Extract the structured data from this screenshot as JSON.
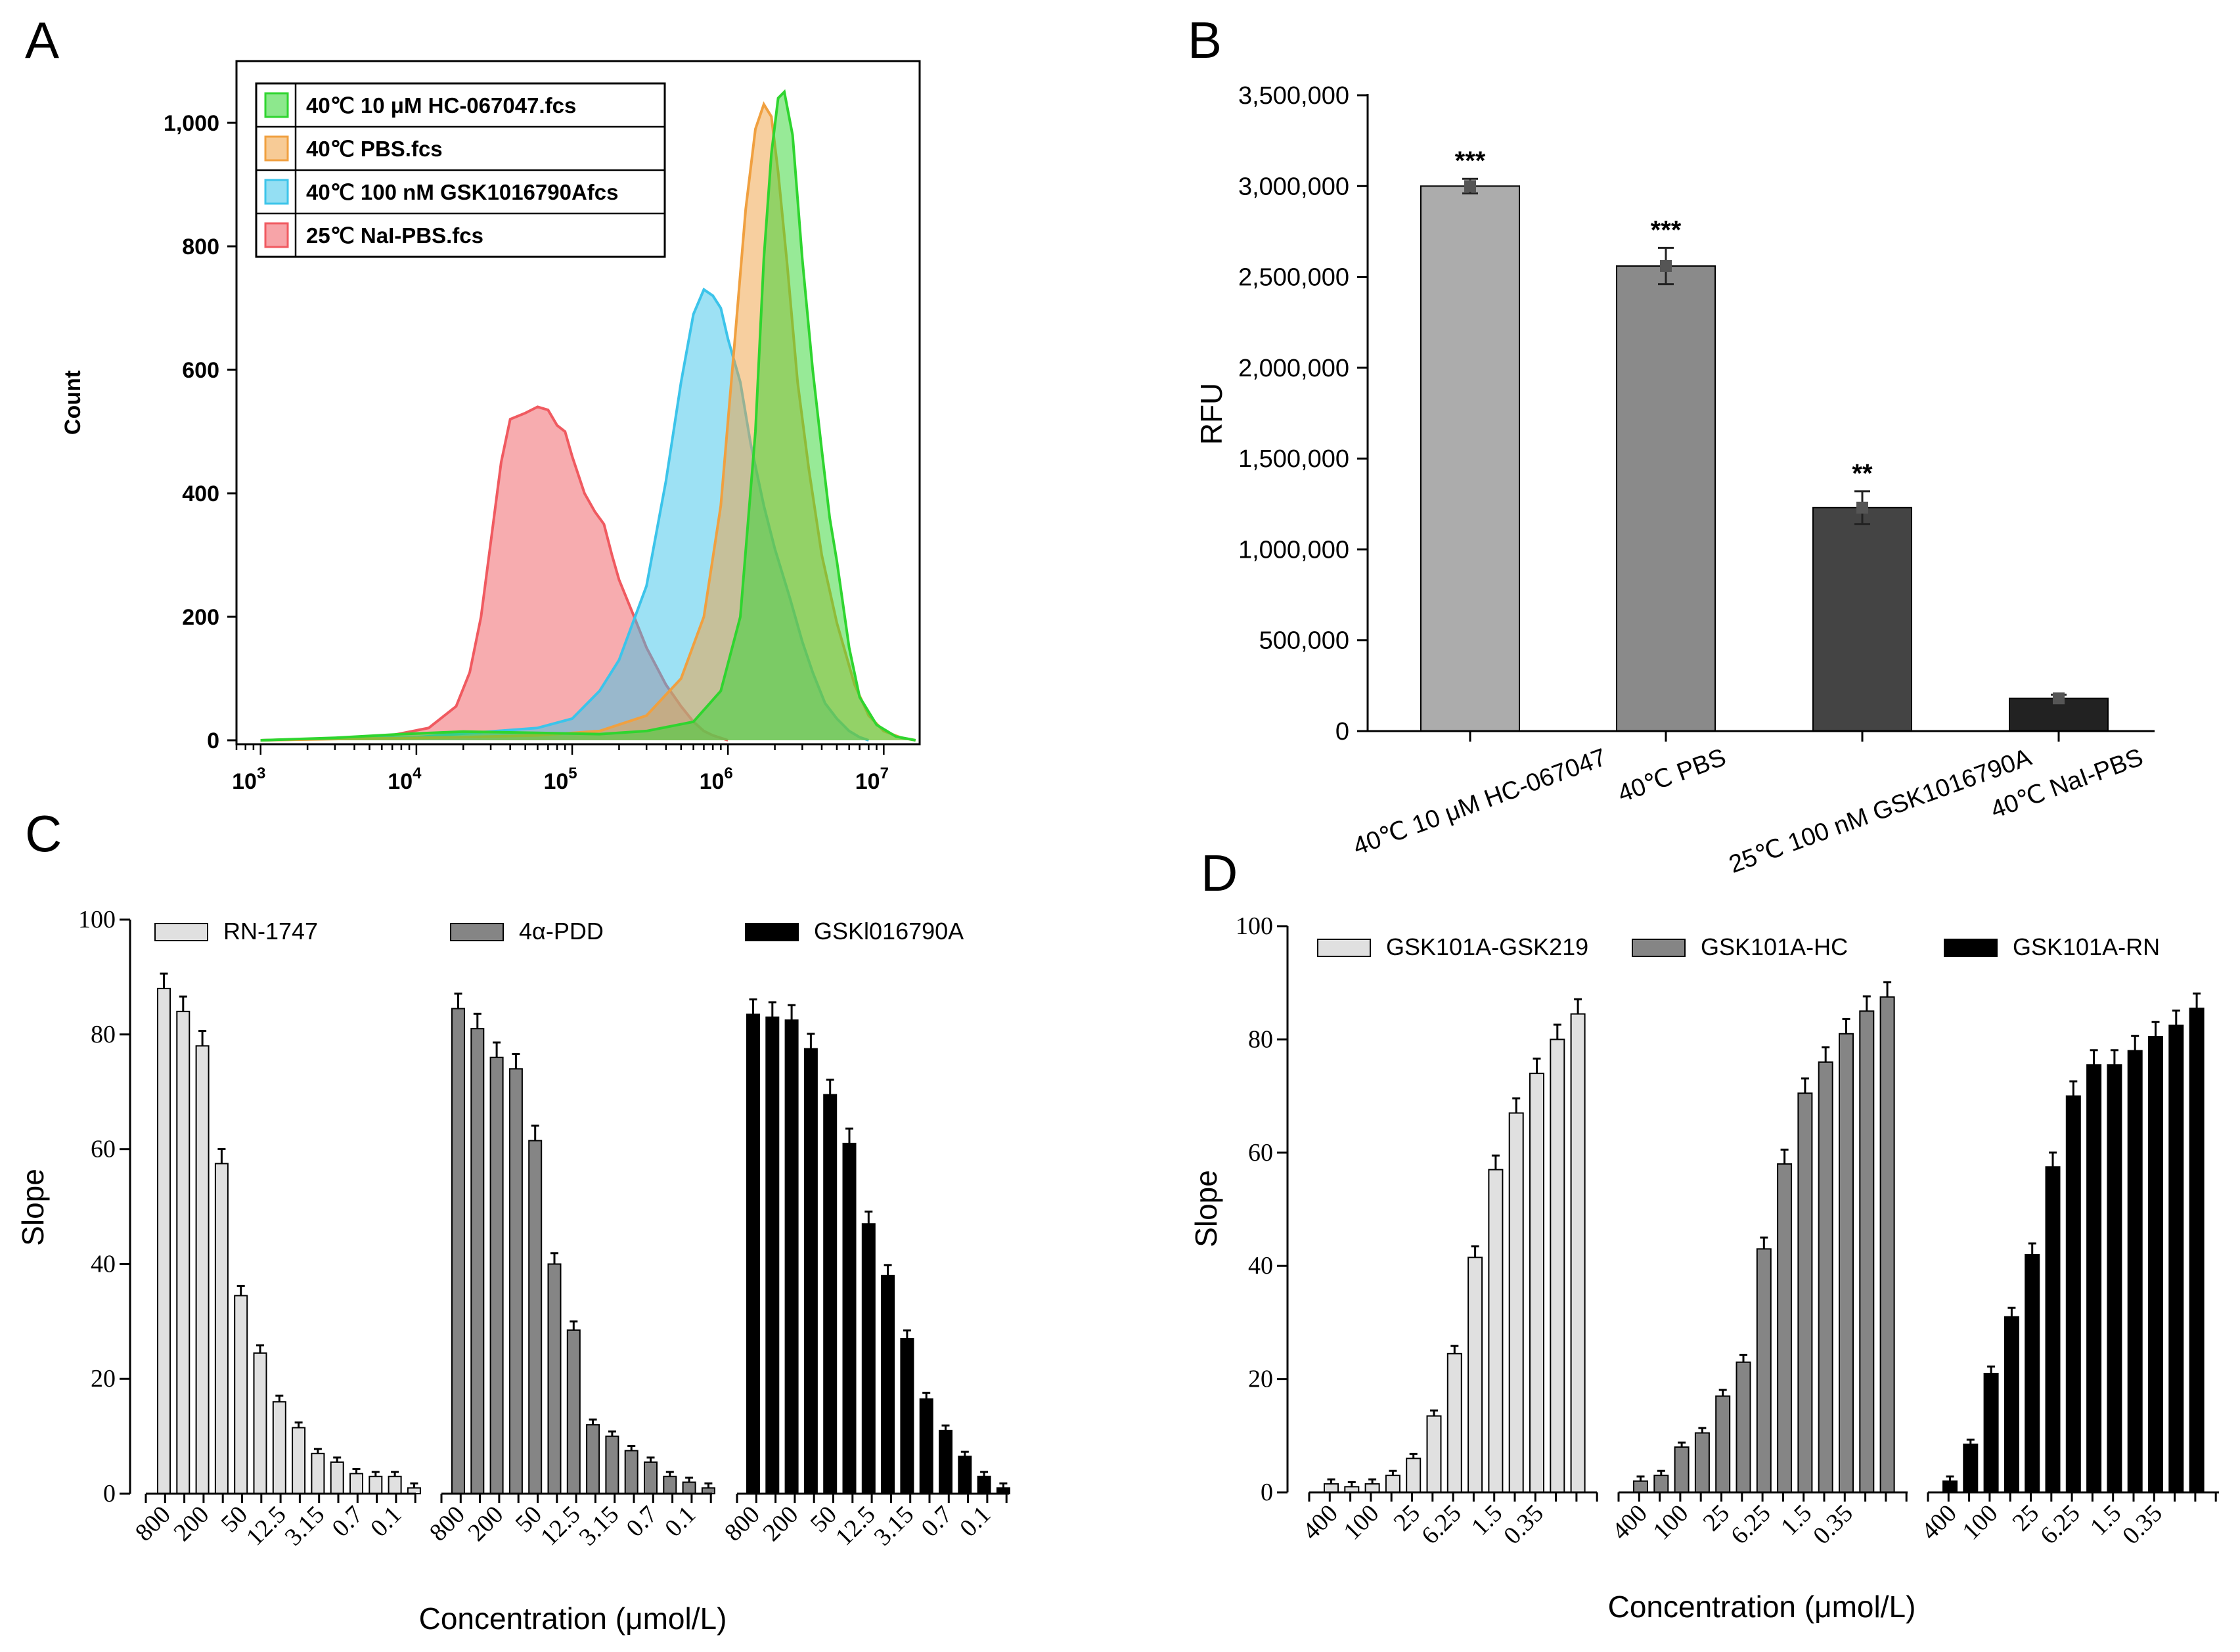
{
  "panel_labels": {
    "a": "A",
    "b": "B",
    "c": "C",
    "d": "D"
  },
  "chart_data": [
    {
      "panel": "A",
      "type": "area",
      "title": "",
      "xlabel": "",
      "ylabel": "Count",
      "xscale": "log",
      "xlim": [
        700,
        17000000
      ],
      "ylim": [
        0,
        1100
      ],
      "x_tick_labels": [
        {
          "value": 1000,
          "label": "10",
          "exp": "3"
        },
        {
          "value": 10000,
          "label": "10",
          "exp": "4"
        },
        {
          "value": 100000,
          "label": "10",
          "exp": "5"
        },
        {
          "value": 1000000,
          "label": "10",
          "exp": "6"
        },
        {
          "value": 10000000,
          "label": "10",
          "exp": "7"
        }
      ],
      "y_ticks": [
        0,
        200,
        400,
        600,
        800,
        1000
      ],
      "y_tick_labels": [
        "0",
        "200",
        "400",
        "600",
        "800",
        "1,000"
      ],
      "legend_position": "top-left",
      "series": [
        {
          "name": "40℃  10 μM HC-067047.fcs",
          "color": "#2fd52f",
          "x": [
            1000,
            3000,
            8000,
            20000,
            60000,
            150000,
            300000,
            600000,
            900000,
            1200000,
            1500000,
            1700000,
            1900000,
            2100000,
            2300000,
            2600000,
            3000000,
            3500000,
            4000000,
            4500000,
            5000000,
            6000000,
            7000000,
            9000000,
            12000000,
            16000000
          ],
          "y": [
            0,
            4,
            10,
            14,
            12,
            10,
            15,
            30,
            80,
            200,
            500,
            780,
            950,
            1040,
            1050,
            980,
            780,
            600,
            470,
            360,
            290,
            150,
            70,
            25,
            6,
            0
          ]
        },
        {
          "name": "40℃  PBS.fcs",
          "color": "#f0a040",
          "x": [
            1000,
            5000,
            20000,
            60000,
            150000,
            300000,
            500000,
            700000,
            900000,
            1100000,
            1300000,
            1500000,
            1700000,
            1900000,
            2100000,
            2400000,
            2800000,
            3300000,
            4000000,
            5000000,
            6500000,
            8000000,
            10000000,
            13000000,
            16000000
          ],
          "y": [
            0,
            3,
            5,
            8,
            15,
            40,
            100,
            200,
            380,
            640,
            860,
            990,
            1030,
            1010,
            920,
            770,
            580,
            440,
            300,
            190,
            90,
            40,
            15,
            4,
            0
          ]
        },
        {
          "name": "40℃  100 nM GSK1016790Afcs",
          "color": "#3cc4ea",
          "x": [
            1000,
            10000,
            60000,
            100000,
            150000,
            200000,
            300000,
            400000,
            500000,
            600000,
            700000,
            800000,
            900000,
            1000000,
            1200000,
            1400000,
            1700000,
            2000000,
            2500000,
            3000000,
            3500000,
            4200000,
            5000000,
            6000000,
            7000000,
            8000000
          ],
          "y": [
            0,
            5,
            20,
            35,
            80,
            130,
            250,
            420,
            580,
            690,
            730,
            720,
            700,
            650,
            580,
            480,
            380,
            310,
            230,
            160,
            110,
            60,
            35,
            15,
            5,
            0
          ]
        },
        {
          "name": "25℃  NaI-PBS.fcs",
          "color": "#f05a60",
          "x": [
            1000,
            6000,
            12000,
            18000,
            22000,
            26000,
            30000,
            35000,
            40000,
            50000,
            60000,
            70000,
            80000,
            90000,
            100000,
            120000,
            140000,
            160000,
            180000,
            200000,
            250000,
            300000,
            400000,
            500000,
            600000,
            700000,
            800000,
            1000000
          ],
          "y": [
            0,
            5,
            20,
            55,
            110,
            200,
            320,
            450,
            520,
            530,
            540,
            535,
            510,
            500,
            460,
            400,
            370,
            350,
            300,
            260,
            200,
            150,
            90,
            55,
            30,
            15,
            8,
            0
          ]
        }
      ]
    },
    {
      "panel": "B",
      "type": "bar",
      "title": "",
      "xlabel": "",
      "ylabel": "RFU",
      "categories": [
        "40℃ 10 μM HC-067047",
        "40℃ PBS",
        "25℃ 100 nM GSK1016790A",
        "40℃ NaI-PBS"
      ],
      "values": [
        3000000,
        2560000,
        1230000,
        180000
      ],
      "errors": [
        40000,
        100000,
        90000,
        20000
      ],
      "colors": [
        "#acacac",
        "#8a8a8a",
        "#444444",
        "#222222"
      ],
      "significance": [
        "***",
        "***",
        "**",
        ""
      ],
      "ylim": [
        0,
        3500000
      ],
      "y_ticks": [
        0,
        500000,
        1000000,
        1500000,
        2000000,
        2500000,
        3000000,
        3500000
      ],
      "y_tick_labels": [
        "0",
        "500,000",
        "1,000,000",
        "1,500,000",
        "2,000,000",
        "2,500,000",
        "3,000,000",
        "3,500,000"
      ]
    },
    {
      "panel": "C",
      "type": "bar",
      "title": "",
      "xlabel": "Concentration (μmol/L)",
      "ylabel": "Slope",
      "ylim": [
        0,
        100
      ],
      "y_ticks": [
        0,
        20,
        40,
        60,
        80,
        100
      ],
      "tick_labels": [
        "800",
        "200",
        "50",
        "12.5",
        "3.15",
        "0.7",
        "0.1"
      ],
      "series": [
        {
          "name": "RN-1747",
          "color": "#e0e0e0",
          "values": [
            88,
            84,
            78,
            57.5,
            34.5,
            24.5,
            16,
            11.5,
            7,
            5.5,
            3.5,
            3,
            3,
            1
          ]
        },
        {
          "name": "4α-PDD",
          "color": "#858585",
          "values": [
            84.5,
            81,
            76,
            74,
            61.5,
            40,
            28.5,
            12,
            10,
            7.5,
            5.5,
            3,
            2,
            1
          ]
        },
        {
          "name": "GSKl016790A",
          "color": "#000000",
          "values": [
            83.5,
            83,
            82.5,
            77.5,
            69.5,
            61,
            47,
            38,
            27,
            16.5,
            11,
            6.5,
            3,
            1
          ]
        }
      ]
    },
    {
      "panel": "D",
      "type": "bar",
      "title": "",
      "xlabel": "Concentration (μmol/L)",
      "ylabel": "Slope",
      "ylim": [
        0,
        100
      ],
      "y_ticks": [
        0,
        20,
        40,
        60,
        80,
        100
      ],
      "tick_labels": [
        "400",
        "100",
        "25",
        "6.25",
        "1.5",
        "0.35"
      ],
      "series": [
        {
          "name": "GSK101A-GSK219",
          "color": "#e0e0e0",
          "values": [
            1.5,
            1,
            1.5,
            3,
            6,
            13.5,
            24.5,
            41.5,
            57,
            67,
            74,
            80,
            84.5
          ]
        },
        {
          "name": "GSK101A-HC",
          "color": "#858585",
          "values": [
            2,
            3,
            8,
            10.5,
            17,
            23,
            43,
            58,
            70.5,
            76,
            81,
            85,
            87.5
          ]
        },
        {
          "name": "GSK101A-RN",
          "color": "#000000",
          "values": [
            2,
            8.5,
            21,
            31,
            42,
            57.5,
            70,
            75.5,
            75.5,
            78,
            80.5,
            82.5,
            85.5
          ]
        }
      ]
    }
  ]
}
